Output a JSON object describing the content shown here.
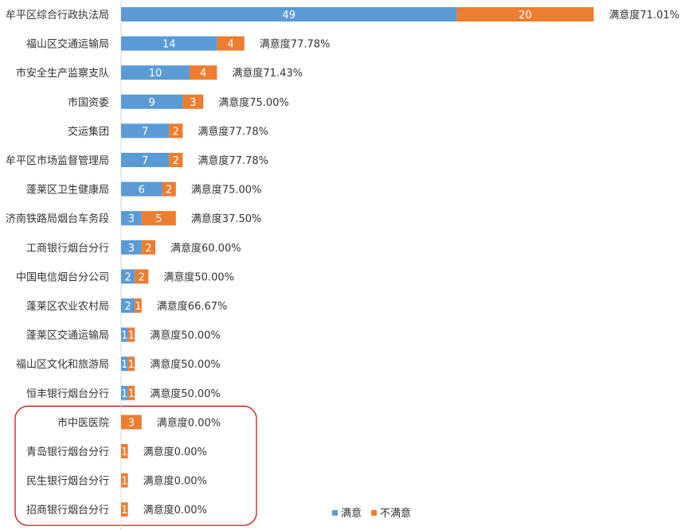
{
  "chart_data": {
    "type": "bar",
    "orientation": "horizontal",
    "stacked": true,
    "categories": [
      "牟平区综合行政执法局",
      "福山区交通运输局",
      "市安全生产监察支队",
      "市国资委",
      "交运集团",
      "牟平区市场监督管理局",
      "蓬莱区卫生健康局",
      "济南铁路局烟台车务段",
      "工商银行烟台分行",
      "中国电信烟台分公司",
      "蓬莱区农业农村局",
      "蓬莱区交通运输局",
      "福山区文化和旅游局",
      "恒丰银行烟台分行",
      "市中医医院",
      "青岛银行烟台分行",
      "民生银行烟台分行",
      "招商银行烟台分行"
    ],
    "series": [
      {
        "name": "满意",
        "color": "#5B9BD5",
        "values": [
          49,
          14,
          10,
          9,
          7,
          7,
          6,
          3,
          3,
          2,
          2,
          1,
          1,
          1,
          0,
          0,
          0,
          0
        ]
      },
      {
        "name": "不满意",
        "color": "#ED7D31",
        "values": [
          20,
          4,
          4,
          3,
          2,
          2,
          2,
          5,
          2,
          2,
          1,
          1,
          1,
          1,
          3,
          1,
          1,
          1
        ]
      }
    ],
    "rate_labels": [
      "满意度71.01%",
      "满意度77.78%",
      "满意度71.43%",
      "满意度75.00%",
      "满意度77.78%",
      "满意度77.78%",
      "满意度75.00%",
      "满意度37.50%",
      "满意度60.00%",
      "满意度50.00%",
      "满意度66.67%",
      "满意度50.00%",
      "满意度50.00%",
      "满意度50.00%",
      "满意度0.00%",
      "满意度0.00%",
      "满意度0.00%",
      "满意度0.00%"
    ],
    "highlight": {
      "from_index": 14,
      "to_index": 17,
      "color": "#C00000"
    },
    "legend_position": "bottom-right",
    "grid": false,
    "axis_color": "#D9D9D9"
  }
}
